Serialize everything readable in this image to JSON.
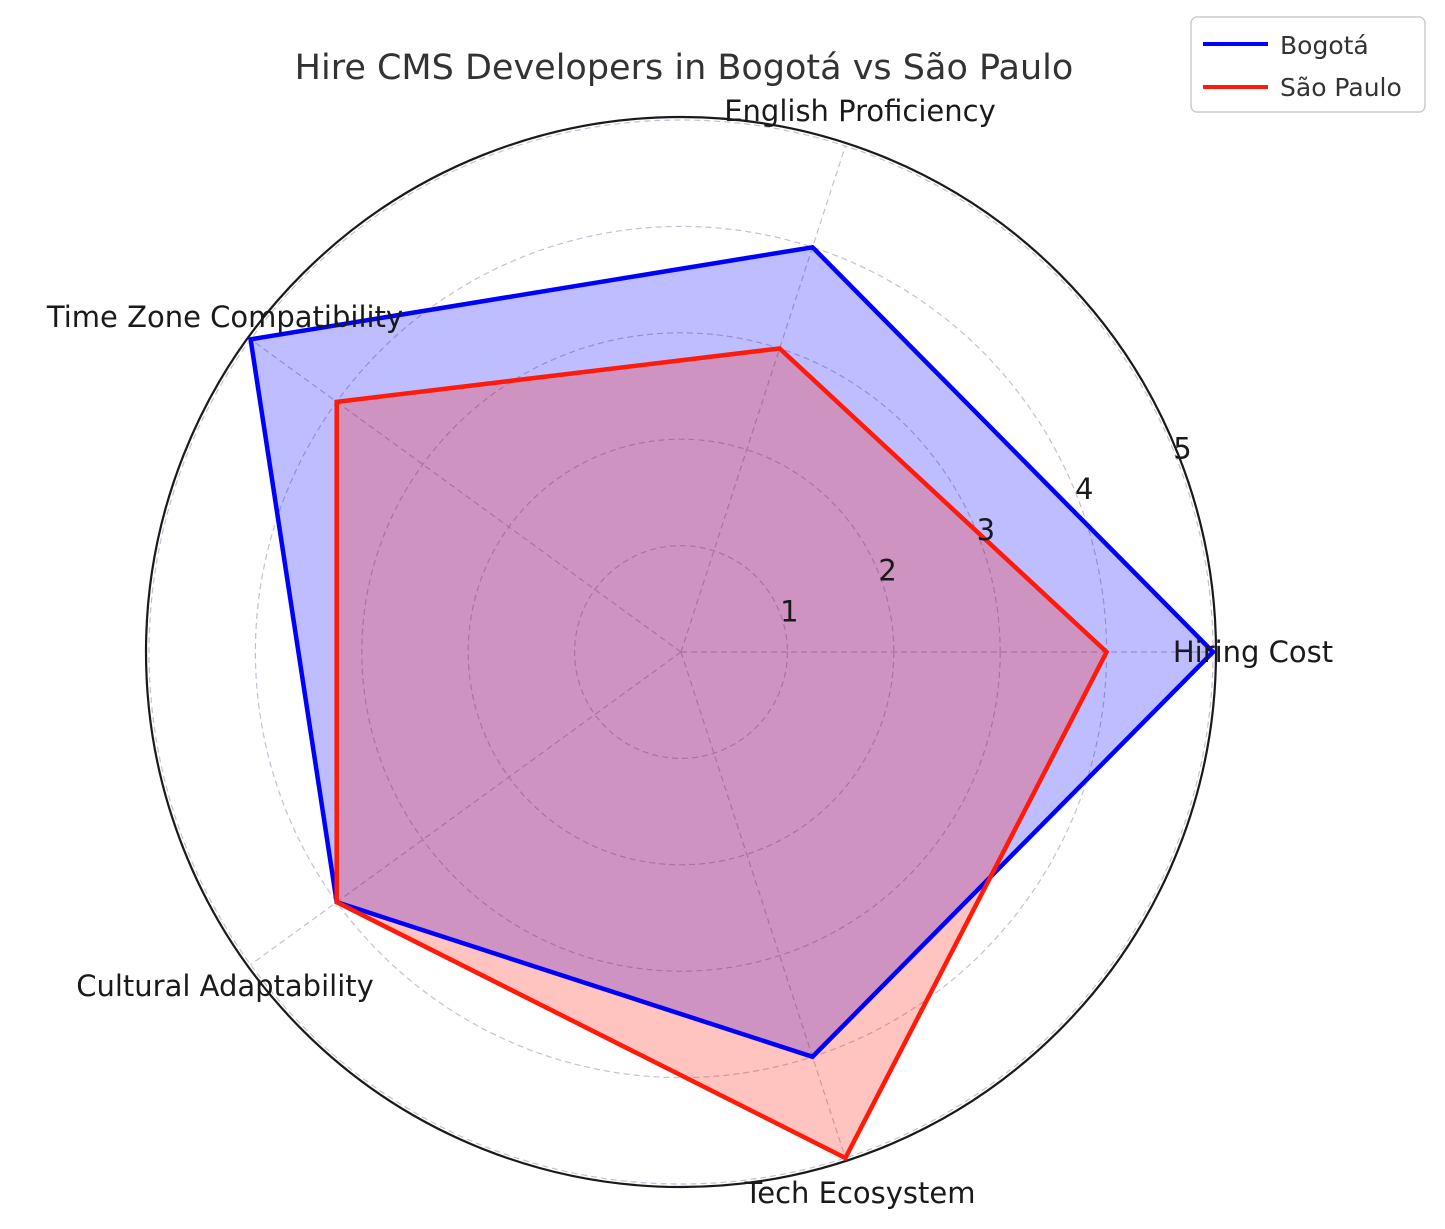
{
  "chart_data": {
    "type": "radar",
    "title": "Hire CMS Developers in Bogotá vs São Paulo",
    "axes": [
      "Hiring Cost",
      "English Proficiency",
      "Time Zone Compatibility",
      "Cultural Adaptability",
      "Tech Ecosystem"
    ],
    "rlim": [
      0,
      5
    ],
    "rticks": [
      "1",
      "2",
      "3",
      "4",
      "5"
    ],
    "grid": true,
    "legend_position": "top-right",
    "series": [
      {
        "name": "Bogotá",
        "values": [
          5,
          4,
          5,
          4,
          4
        ],
        "color": "#0000ff",
        "fill": "#0000ff"
      },
      {
        "name": "São Paulo",
        "values": [
          4,
          3,
          4,
          4,
          5
        ],
        "color": "#ff1a0a",
        "fill": "#ff1a0a"
      }
    ]
  }
}
